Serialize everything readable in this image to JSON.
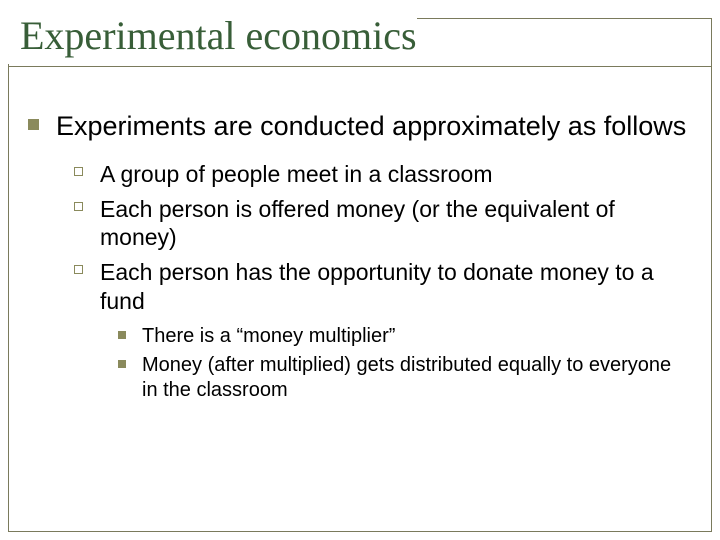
{
  "title": "Experimental economics",
  "colors": {
    "title": "#385e38",
    "border": "#7a7a5c",
    "bullet": "#8a8a5c",
    "text": "#000000",
    "background": "#ffffff"
  },
  "level1": {
    "text": "Experiments are conducted approximately as follows"
  },
  "level2": [
    {
      "text": "A group of people meet in a classroom"
    },
    {
      "text": "Each person is offered money (or the equivalent of money)"
    },
    {
      "text": "Each person has the opportunity to donate money to a fund"
    }
  ],
  "level3": [
    {
      "text": "There is a “money multiplier”"
    },
    {
      "text": "Money (after multiplied) gets distributed equally to everyone in the classroom"
    }
  ]
}
